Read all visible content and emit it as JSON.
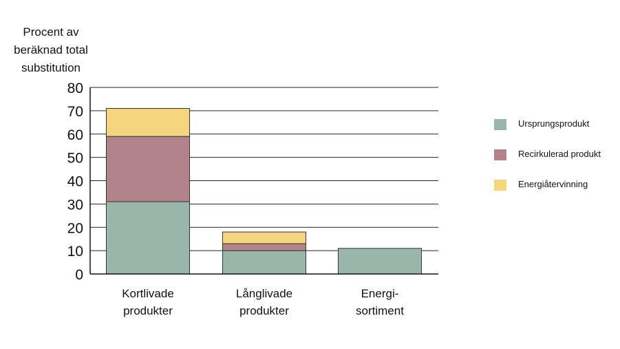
{
  "chart_data": {
    "type": "bar",
    "stacked": true,
    "ylabel_lines": [
      "Procent av",
      "beräknad total",
      "substitution"
    ],
    "ylim": [
      0,
      80
    ],
    "yticks": [
      0,
      10,
      20,
      30,
      40,
      50,
      60,
      70,
      80
    ],
    "grid": true,
    "legend_position": "right",
    "categories": [
      [
        "Kortlivade",
        "produkter"
      ],
      [
        "Långlivade",
        "produkter"
      ],
      [
        "Energi-",
        "sortiment"
      ]
    ],
    "series": [
      {
        "name": "Ursprungsprodukt",
        "color": "#9ab5aa",
        "values": [
          31,
          10,
          11
        ]
      },
      {
        "name": "Recirkulerad produkt",
        "color": "#b08489",
        "values": [
          28,
          3,
          0
        ]
      },
      {
        "name": "Energiåtervinning",
        "color": "#f5d67e",
        "values": [
          12,
          5,
          0
        ]
      }
    ]
  }
}
